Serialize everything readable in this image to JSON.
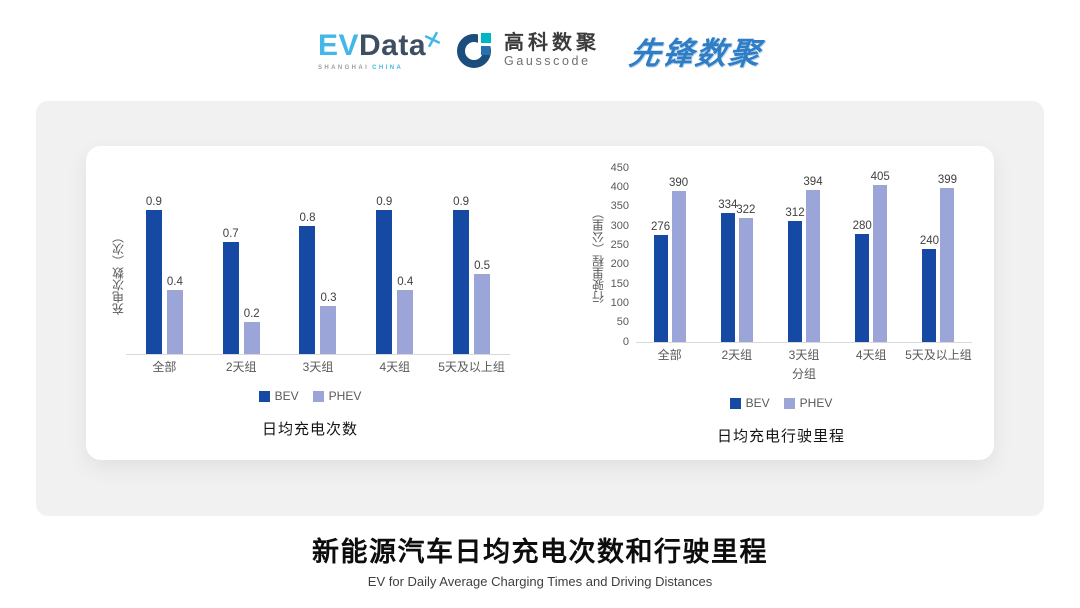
{
  "header": {
    "evdata": {
      "part1": "EV",
      "part2": "Data",
      "sub1": "SHANGHAI",
      "sub2": "CHINA",
      "accent_color": "#42b7e8",
      "dark_color": "#3e4f63"
    },
    "gausscode": {
      "cn": "高科数聚",
      "en": "Gausscode",
      "navy_color": "#1b4d7d",
      "teal_color": "#00b5c4",
      "blue_color": "#2a6fae"
    },
    "pioneer": {
      "text": "先锋数聚",
      "color": "#2e7dc5"
    }
  },
  "chart_data": [
    {
      "type": "bar",
      "title": "日均充电次数",
      "ylabel": "充电次数（次）",
      "xlabel": "",
      "categories": [
        "全部",
        "2天组",
        "3天组",
        "4天组",
        "5天及以上组"
      ],
      "series": [
        {
          "name": "BEV",
          "color": "#1649a3",
          "values": [
            0.9,
            0.7,
            0.8,
            0.9,
            0.9
          ]
        },
        {
          "name": "PHEV",
          "color": "#9ba5d8",
          "values": [
            0.4,
            0.2,
            0.3,
            0.4,
            0.5
          ]
        }
      ],
      "ylim": [
        0,
        1.0
      ],
      "yticks": [],
      "grid": false,
      "legend_position": "bottom"
    },
    {
      "type": "bar",
      "title": "日均充电行驶里程",
      "ylabel": "行驶里程（公里）",
      "xlabel": "分组",
      "categories": [
        "全部",
        "2天组",
        "3天组",
        "4天组",
        "5天及以上组"
      ],
      "series": [
        {
          "name": "BEV",
          "color": "#1649a3",
          "values": [
            276,
            334,
            312,
            280,
            240
          ]
        },
        {
          "name": "PHEV",
          "color": "#9ba5d8",
          "values": [
            390,
            322,
            394,
            405,
            399
          ]
        }
      ],
      "ylim": [
        0,
        450
      ],
      "yticks": [
        0,
        50,
        100,
        150,
        200,
        250,
        300,
        350,
        400,
        450
      ],
      "grid": false,
      "legend_position": "bottom"
    }
  ],
  "footer": {
    "title": "新能源汽车日均充电次数和行驶里程",
    "subtitle": "EV for Daily Average Charging Times and Driving Distances"
  }
}
